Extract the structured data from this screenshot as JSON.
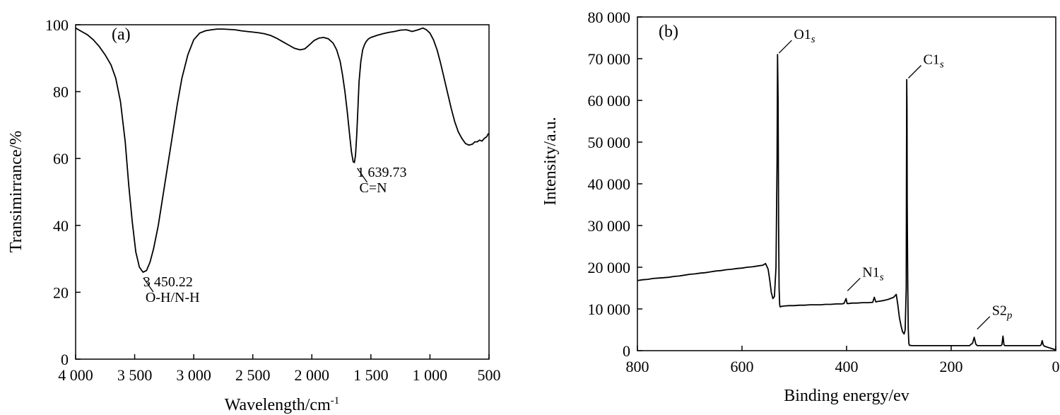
{
  "chart_data": [
    {
      "type": "line",
      "panel_label": "(a)",
      "xlabel": "Wavelength/cm⁻¹",
      "ylabel": "Transimirrance/%",
      "xlim": [
        4000,
        500
      ],
      "ylim": [
        0,
        100
      ],
      "x_reversed": true,
      "x_ticks": [
        4000,
        3500,
        3000,
        2500,
        2000,
        1500,
        1000,
        500
      ],
      "x_tick_labels": [
        "4 000",
        "3 500",
        "3 000",
        "2 500",
        "2 000",
        "1 500",
        "1 000",
        "500"
      ],
      "y_ticks": [
        0,
        20,
        40,
        60,
        80,
        100
      ],
      "y_tick_labels": [
        "0",
        "20",
        "40",
        "60",
        "80",
        "100"
      ],
      "grid": false,
      "series": [
        {
          "x": [
            4000,
            3950,
            3900,
            3850,
            3800,
            3750,
            3700,
            3660,
            3620,
            3580,
            3550,
            3520,
            3490,
            3460,
            3430,
            3400,
            3370,
            3340,
            3300,
            3260,
            3220,
            3180,
            3140,
            3100,
            3050,
            3000,
            2950,
            2900,
            2850,
            2800,
            2750,
            2700,
            2650,
            2600,
            2550,
            2500,
            2450,
            2400,
            2350,
            2300,
            2250,
            2200,
            2150,
            2100,
            2060,
            2020,
            1980,
            1940,
            1900,
            1860,
            1820,
            1790,
            1760,
            1740,
            1720,
            1700,
            1680,
            1665,
            1650,
            1640,
            1630,
            1620,
            1610,
            1600,
            1585,
            1570,
            1555,
            1540,
            1520,
            1500,
            1450,
            1400,
            1350,
            1300,
            1250,
            1200,
            1150,
            1100,
            1060,
            1030,
            1000,
            970,
            940,
            910,
            880,
            850,
            820,
            790,
            760,
            730,
            700,
            670,
            640,
            620,
            600,
            580,
            560,
            540,
            520,
            505
          ],
          "y": [
            99,
            98,
            97,
            95.5,
            93.5,
            91,
            88,
            84,
            77,
            65,
            52,
            41,
            32,
            27.5,
            26,
            26.5,
            29,
            33,
            40,
            49,
            58,
            67,
            76,
            84,
            91,
            95.5,
            97.5,
            98.2,
            98.5,
            98.7,
            98.7,
            98.6,
            98.5,
            98.2,
            98,
            97.8,
            97.6,
            97.3,
            96.8,
            96,
            95,
            94,
            93,
            92.5,
            92.8,
            94,
            95.3,
            96,
            96.2,
            95.8,
            94.5,
            92.5,
            89,
            85,
            80,
            74,
            67,
            62,
            59,
            58.8,
            61,
            67,
            75,
            83,
            89,
            92.5,
            94,
            95,
            95.8,
            96.2,
            96.8,
            97.3,
            97.7,
            98,
            98.4,
            98.5,
            98,
            98.5,
            99,
            98.5,
            97.5,
            95.5,
            92.5,
            88.5,
            84,
            79.5,
            75,
            71,
            68,
            66,
            64.5,
            64,
            64.3,
            65,
            65,
            65.5,
            65.2,
            66,
            66.5,
            67.5
          ]
        }
      ],
      "annotations": [
        {
          "x": 3450.22,
          "y": 26,
          "lines": [
            "3 450.22",
            "O-H/N-H"
          ]
        },
        {
          "x": 1639.73,
          "y": 58.8,
          "lines": [
            "1 639.73",
            "C=N"
          ]
        }
      ]
    },
    {
      "type": "line",
      "panel_label": "(b)",
      "xlabel": "Binding energy/ev",
      "ylabel": "Intensity/a.u.",
      "xlim": [
        800,
        0
      ],
      "ylim": [
        0,
        80000
      ],
      "x_reversed": true,
      "x_ticks": [
        800,
        600,
        400,
        200,
        0
      ],
      "x_tick_labels": [
        "800",
        "600",
        "400",
        "200",
        "0"
      ],
      "y_ticks": [
        0,
        10000,
        20000,
        30000,
        40000,
        50000,
        60000,
        70000,
        80000
      ],
      "y_tick_labels": [
        "0",
        "10 000",
        "20 000",
        "30 000",
        "40 000",
        "50 000",
        "60 000",
        "70 000",
        "80 000"
      ],
      "grid": false,
      "series": [
        {
          "x": [
            800,
            790,
            780,
            770,
            760,
            750,
            740,
            730,
            720,
            710,
            700,
            690,
            680,
            670,
            660,
            650,
            640,
            630,
            620,
            610,
            600,
            590,
            580,
            570,
            560,
            555,
            550,
            547,
            544,
            541,
            538,
            535,
            533,
            532,
            531,
            530,
            529,
            528,
            527,
            525,
            520,
            510,
            500,
            490,
            480,
            470,
            460,
            450,
            440,
            430,
            420,
            410,
            405,
            401,
            399,
            395,
            390,
            380,
            370,
            360,
            350,
            347,
            344,
            340,
            330,
            320,
            310,
            305,
            302,
            299,
            296,
            293,
            290,
            288,
            286,
            285.5,
            285,
            284.5,
            284,
            283,
            282,
            281,
            280,
            275,
            270,
            260,
            250,
            240,
            230,
            220,
            210,
            200,
            190,
            180,
            170,
            165,
            162,
            159,
            156,
            153,
            150,
            140,
            130,
            120,
            110,
            105,
            103,
            101,
            99,
            97,
            90,
            80,
            70,
            60,
            50,
            40,
            30,
            28,
            26,
            24,
            22,
            20,
            15,
            10,
            5,
            0
          ],
          "y": [
            16800,
            17000,
            17100,
            17300,
            17400,
            17500,
            17600,
            17800,
            17900,
            18100,
            18300,
            18400,
            18600,
            18700,
            18900,
            19100,
            19200,
            19400,
            19500,
            19700,
            19800,
            20000,
            20100,
            20300,
            20500,
            20900,
            19500,
            17000,
            14000,
            12500,
            13000,
            20000,
            45000,
            71000,
            60000,
            30000,
            15000,
            11000,
            10500,
            10600,
            10700,
            10800,
            10800,
            10900,
            10900,
            11000,
            11000,
            11000,
            11100,
            11100,
            11200,
            11200,
            11300,
            12500,
            11300,
            11300,
            11400,
            11400,
            11500,
            11500,
            11600,
            12800,
            11700,
            11800,
            12000,
            12300,
            12800,
            13500,
            11000,
            8000,
            6000,
            4500,
            4000,
            5000,
            15000,
            40000,
            65000,
            58000,
            35000,
            15000,
            5000,
            1800,
            1300,
            1200,
            1200,
            1200,
            1200,
            1200,
            1200,
            1200,
            1200,
            1200,
            1200,
            1200,
            1200,
            1200,
            1500,
            1800,
            3200,
            1600,
            1200,
            1200,
            1200,
            1200,
            1200,
            1200,
            1400,
            3500,
            1400,
            1200,
            1200,
            1200,
            1200,
            1200,
            1200,
            1200,
            1200,
            1400,
            2400,
            1400,
            1100,
            1000,
            800,
            600,
            400,
            200
          ]
        }
      ],
      "annotations": [
        {
          "x": 532,
          "y": 71000,
          "text": "O1",
          "sub": "s",
          "dir": "right-up"
        },
        {
          "x": 284.5,
          "y": 65000,
          "text": "C1",
          "sub": "s",
          "dir": "right-up"
        },
        {
          "x": 401,
          "y": 14000,
          "text": "N1",
          "sub": "s",
          "dir": "right-up"
        },
        {
          "x": 153,
          "y": 4800,
          "text": "S2",
          "sub": "p",
          "dir": "right-up"
        }
      ]
    }
  ]
}
